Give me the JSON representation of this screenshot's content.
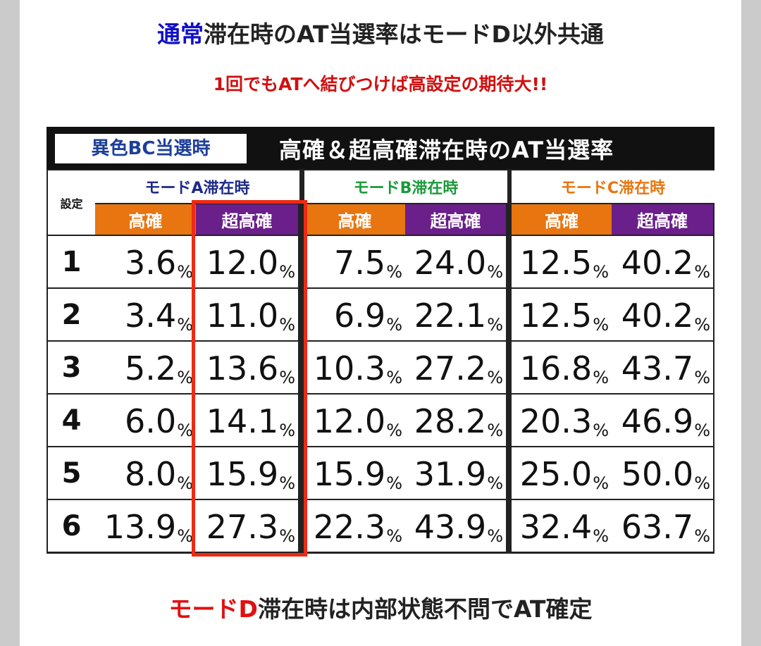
{
  "heading": {
    "highlight": "通常",
    "rest": "滞在時のAT当選率はモードD以外共通"
  },
  "subheading": "1回でもATへ結びつけば高設定の期待大!!",
  "table": {
    "badge": "異色BC当選時",
    "title": "高確＆超高確滞在時のAT当選率",
    "setting_header": "設定",
    "modes": [
      {
        "label": "モードA滞在時",
        "color": "#1d2a8a"
      },
      {
        "label": "モードB滞在時",
        "color": "#1a9a3a"
      },
      {
        "label": "モードC滞在時",
        "color": "#e8750f"
      }
    ],
    "sub_headers": [
      "高確",
      "超高確"
    ],
    "unit": "%",
    "rows": [
      {
        "setting": "1",
        "values": [
          "3.6",
          "12.0",
          "7.5",
          "24.0",
          "12.5",
          "40.2"
        ]
      },
      {
        "setting": "2",
        "values": [
          "3.4",
          "11.0",
          "6.9",
          "22.1",
          "12.5",
          "40.2"
        ]
      },
      {
        "setting": "3",
        "values": [
          "5.2",
          "13.6",
          "10.3",
          "27.2",
          "16.8",
          "43.7"
        ]
      },
      {
        "setting": "4",
        "values": [
          "6.0",
          "14.1",
          "12.0",
          "28.2",
          "20.3",
          "46.9"
        ]
      },
      {
        "setting": "5",
        "values": [
          "8.0",
          "15.9",
          "15.9",
          "31.9",
          "25.0",
          "50.0"
        ]
      },
      {
        "setting": "6",
        "values": [
          "13.9",
          "27.3",
          "22.3",
          "43.9",
          "32.4",
          "63.7"
        ]
      }
    ],
    "highlight_color": "#ee2a14"
  },
  "footer": {
    "highlight": "モードD",
    "rest": "滞在時は内部状態不問でAT確定"
  }
}
